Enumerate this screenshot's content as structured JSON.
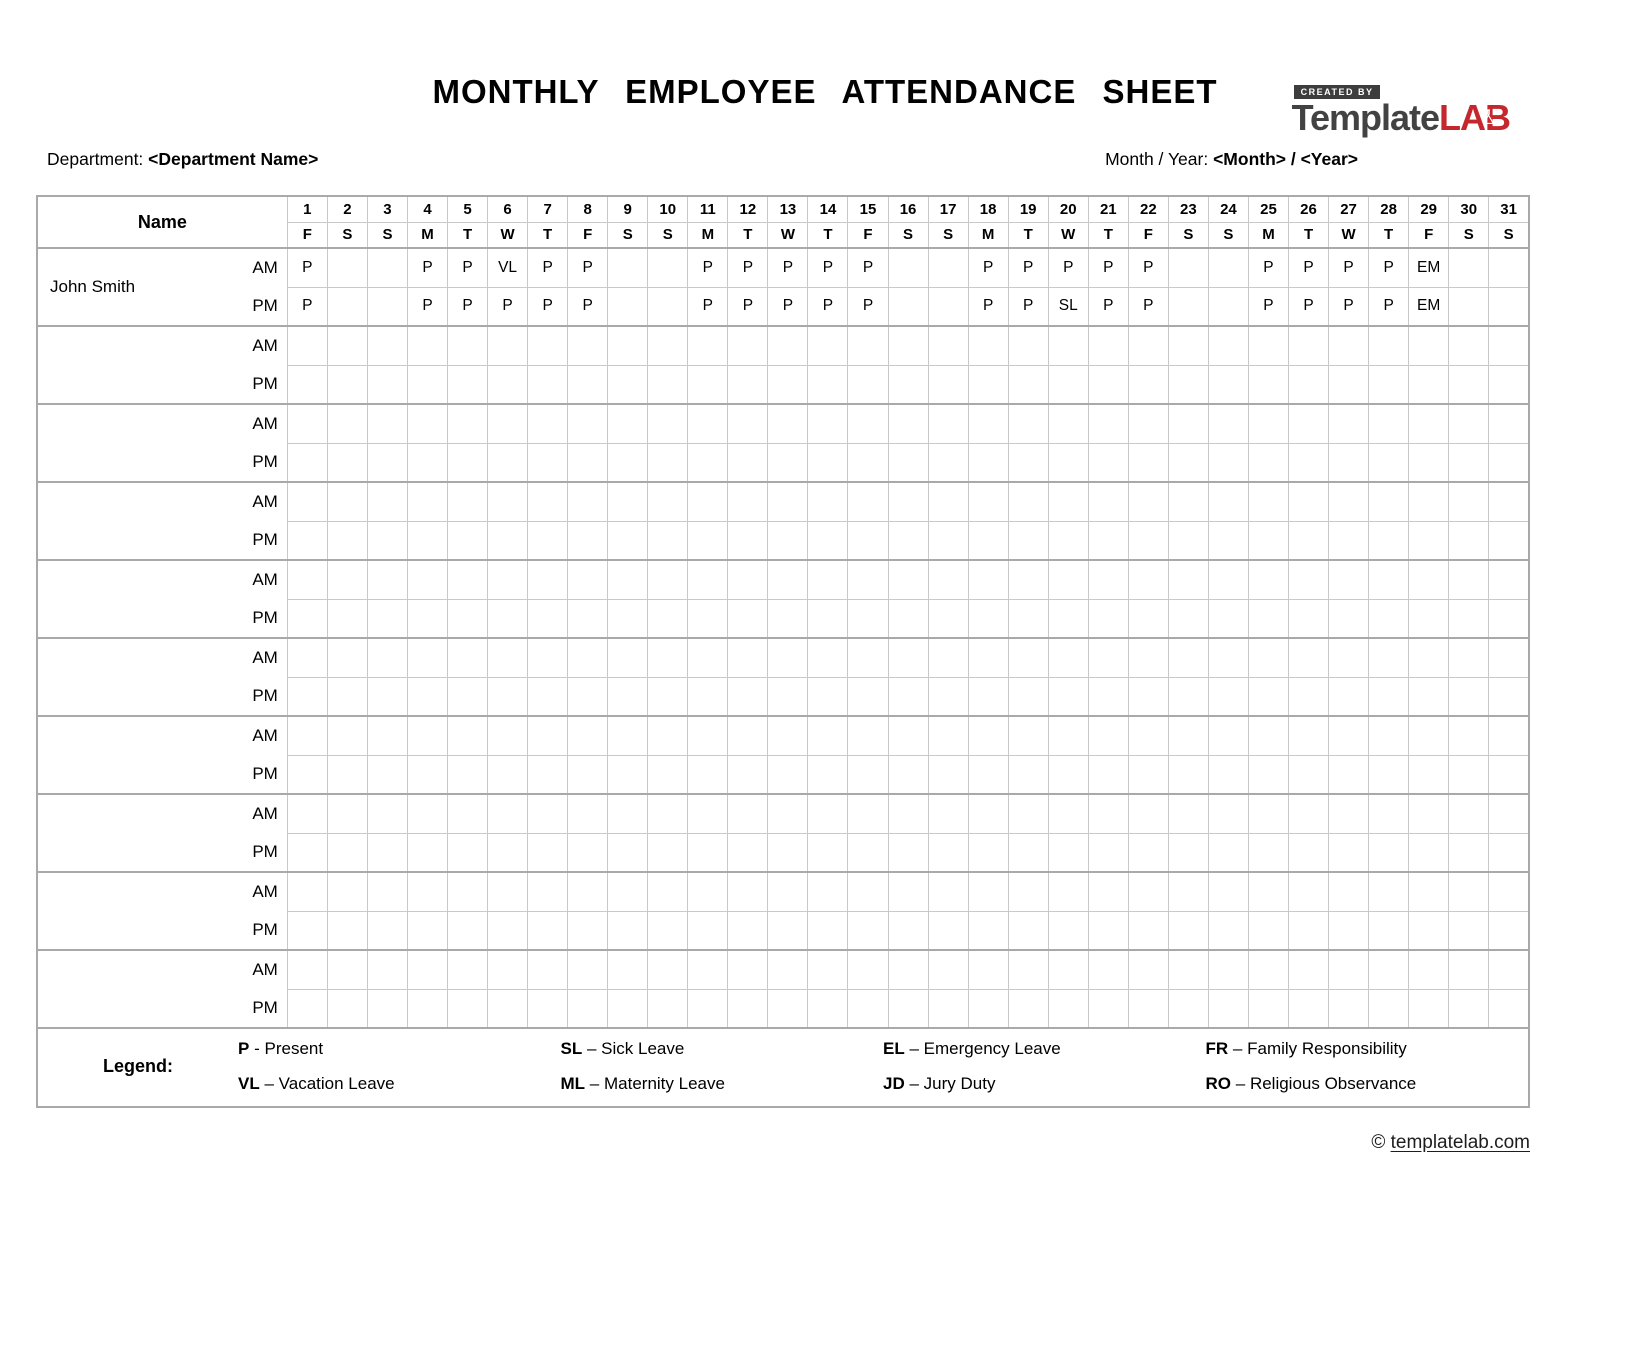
{
  "logo": {
    "created_by": "CREATED BY",
    "brand_gray": "Template",
    "brand_red": "LAB",
    "badge_color": "#3d3d3d",
    "red_color": "#c4272c"
  },
  "title": "MONTHLY EMPLOYEE ATTENDANCE SHEET",
  "meta": {
    "department_label": "Department:",
    "department_value": "<Department Name>",
    "month_year_label": "Month / Year:",
    "month_year_value": "<Month> / <Year>"
  },
  "table": {
    "name_header": "Name",
    "am_label": "AM",
    "pm_label": "PM",
    "days": [
      1,
      2,
      3,
      4,
      5,
      6,
      7,
      8,
      9,
      10,
      11,
      12,
      13,
      14,
      15,
      16,
      17,
      18,
      19,
      20,
      21,
      22,
      23,
      24,
      25,
      26,
      27,
      28,
      29,
      30,
      31
    ],
    "weekdays": [
      "F",
      "S",
      "S",
      "M",
      "T",
      "W",
      "T",
      "F",
      "S",
      "S",
      "M",
      "T",
      "W",
      "T",
      "F",
      "S",
      "S",
      "M",
      "T",
      "W",
      "T",
      "F",
      "S",
      "S",
      "M",
      "T",
      "W",
      "T",
      "F",
      "S",
      "S"
    ],
    "employees": [
      {
        "name": "John Smith",
        "am": [
          "P",
          "",
          "",
          "P",
          "P",
          "VL",
          "P",
          "P",
          "",
          "",
          "P",
          "P",
          "P",
          "P",
          "P",
          "",
          "",
          "P",
          "P",
          "P",
          "P",
          "P",
          "",
          "",
          "P",
          "P",
          "P",
          "P",
          "EM",
          "",
          ""
        ],
        "pm": [
          "P",
          "",
          "",
          "P",
          "P",
          "P",
          "P",
          "P",
          "",
          "",
          "P",
          "P",
          "P",
          "P",
          "P",
          "",
          "",
          "P",
          "P",
          "SL",
          "P",
          "P",
          "",
          "",
          "P",
          "P",
          "P",
          "P",
          "EM",
          "",
          ""
        ]
      },
      {
        "name": "",
        "am": [],
        "pm": []
      },
      {
        "name": "",
        "am": [],
        "pm": []
      },
      {
        "name": "",
        "am": [],
        "pm": []
      },
      {
        "name": "",
        "am": [],
        "pm": []
      },
      {
        "name": "",
        "am": [],
        "pm": []
      },
      {
        "name": "",
        "am": [],
        "pm": []
      },
      {
        "name": "",
        "am": [],
        "pm": []
      },
      {
        "name": "",
        "am": [],
        "pm": []
      },
      {
        "name": "",
        "am": [],
        "pm": []
      }
    ]
  },
  "legend": {
    "label": "Legend:",
    "items": [
      {
        "abbr": "P",
        "sep": "-",
        "text": "Present"
      },
      {
        "abbr": "SL",
        "sep": "–",
        "text": "Sick Leave"
      },
      {
        "abbr": "EL",
        "sep": "–",
        "text": "Emergency Leave"
      },
      {
        "abbr": "FR",
        "sep": "–",
        "text": "Family Responsibility"
      },
      {
        "abbr": "VL",
        "sep": "–",
        "text": "Vacation Leave"
      },
      {
        "abbr": "ML",
        "sep": "–",
        "text": "Maternity Leave"
      },
      {
        "abbr": "JD",
        "sep": "–",
        "text": "Jury Duty"
      },
      {
        "abbr": "RO",
        "sep": "–",
        "text": "Religious Observance"
      }
    ]
  },
  "footer": {
    "copyright": "©",
    "link": "templatelab.com"
  }
}
